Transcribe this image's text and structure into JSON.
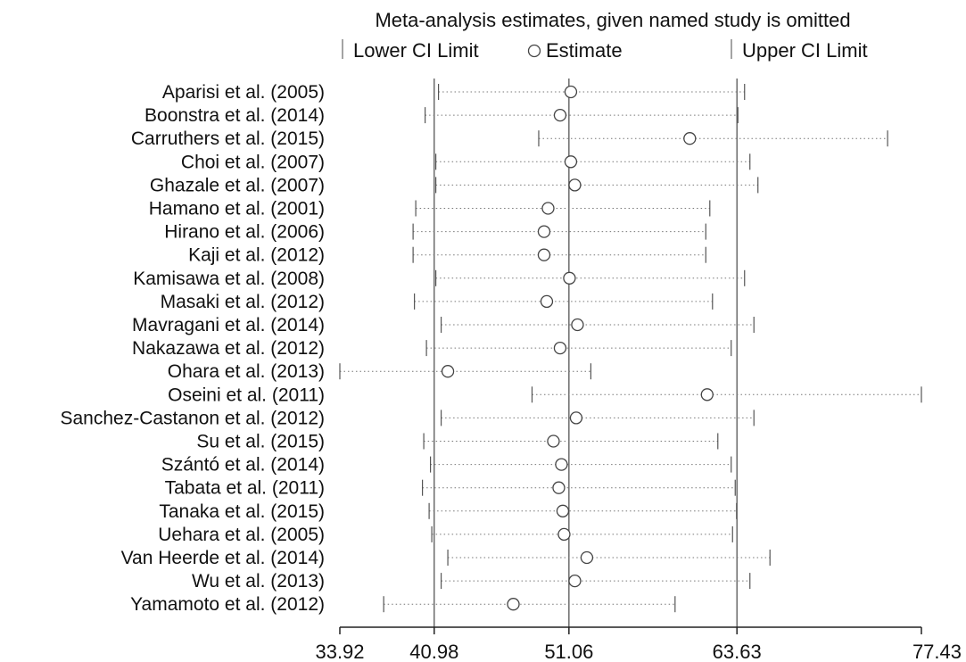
{
  "chart_data": {
    "type": "forest",
    "title": "Meta-analysis estimates, given named study is omitted",
    "legend": {
      "lower": "Lower CI Limit",
      "estimate": "Estimate",
      "upper": "Upper CI Limit",
      "placement": "top"
    },
    "xlim": [
      33.92,
      77.43
    ],
    "x_ticks": [
      "33.92",
      "40.98",
      "51.06",
      "63.63",
      "77.43"
    ],
    "reference_lines": [
      40.98,
      51.06,
      63.63
    ],
    "grid": false,
    "studies": [
      {
        "label": "Aparisi et al. (2005)",
        "lower": 41.3,
        "estimate": 51.2,
        "upper": 64.2
      },
      {
        "label": "Boonstra et al. (2014)",
        "lower": 40.3,
        "estimate": 50.4,
        "upper": 63.7
      },
      {
        "label": "Carruthers et al. (2015)",
        "lower": 48.8,
        "estimate": 60.1,
        "upper": 74.9
      },
      {
        "label": "Choi et al. (2007)",
        "lower": 41.1,
        "estimate": 51.2,
        "upper": 64.6
      },
      {
        "label": "Ghazale et al. (2007)",
        "lower": 41.1,
        "estimate": 51.5,
        "upper": 65.2
      },
      {
        "label": "Hamano et al. (2001)",
        "lower": 39.6,
        "estimate": 49.5,
        "upper": 61.6
      },
      {
        "label": "Hirano et al. (2006)",
        "lower": 39.4,
        "estimate": 49.2,
        "upper": 61.3
      },
      {
        "label": "Kaji et al. (2012)",
        "lower": 39.4,
        "estimate": 49.2,
        "upper": 61.3
      },
      {
        "label": "Kamisawa et al. (2008)",
        "lower": 41.1,
        "estimate": 51.1,
        "upper": 64.2
      },
      {
        "label": "Masaki et al. (2012)",
        "lower": 39.5,
        "estimate": 49.4,
        "upper": 61.8
      },
      {
        "label": "Mavragani et al. (2014)",
        "lower": 41.5,
        "estimate": 51.7,
        "upper": 64.9
      },
      {
        "label": "Nakazawa et al. (2012)",
        "lower": 40.4,
        "estimate": 50.4,
        "upper": 63.2
      },
      {
        "label": "Ohara et al. (2013)",
        "lower": 33.92,
        "estimate": 42.0,
        "upper": 52.7
      },
      {
        "label": "Oseini et al. (2011)",
        "lower": 48.3,
        "estimate": 61.4,
        "upper": 77.43
      },
      {
        "label": "Sanchez-Castanon et al. (2012)",
        "lower": 41.5,
        "estimate": 51.6,
        "upper": 64.9
      },
      {
        "label": "Su et al. (2015)",
        "lower": 40.2,
        "estimate": 49.9,
        "upper": 62.2
      },
      {
        "label": "Szántó et al. (2014)",
        "lower": 40.7,
        "estimate": 50.5,
        "upper": 63.2
      },
      {
        "label": "Tabata et al. (2011)",
        "lower": 40.1,
        "estimate": 50.3,
        "upper": 63.5
      },
      {
        "label": "Tanaka et al. (2015)",
        "lower": 40.6,
        "estimate": 50.6,
        "upper": 63.6
      },
      {
        "label": "Uehara et al. (2005)",
        "lower": 40.8,
        "estimate": 50.7,
        "upper": 63.3
      },
      {
        "label": "Van Heerde et al. (2014)",
        "lower": 42.0,
        "estimate": 52.4,
        "upper": 66.1
      },
      {
        "label": "Wu et al. (2013)",
        "lower": 41.5,
        "estimate": 51.5,
        "upper": 64.6
      },
      {
        "label": "Yamamoto et al. (2012)",
        "lower": 37.2,
        "estimate": 46.9,
        "upper": 59.0
      }
    ]
  }
}
